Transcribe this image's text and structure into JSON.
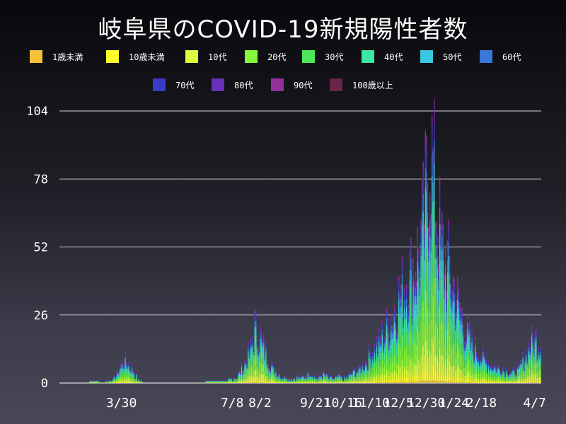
{
  "chart_data": {
    "type": "bar",
    "stacked": true,
    "title": "岐阜県のCOVID-19新規陽性者数",
    "xlabel": "",
    "ylabel": "",
    "ylim": [
      0,
      104
    ],
    "y_ticks": [
      0,
      26,
      52,
      78,
      104
    ],
    "x_tick_labels": [
      "3/30",
      "7/8",
      "8/2",
      "9/21",
      "10/16",
      "11/10",
      "12/5",
      "12/30",
      "1/24",
      "2/18",
      "4/7"
    ],
    "x_tick_days": [
      56,
      156,
      181,
      231,
      256,
      281,
      306,
      331,
      356,
      381,
      429
    ],
    "x_range_days": [
      0,
      435
    ],
    "grid": true,
    "legend_position": "top",
    "series": [
      {
        "name": "1歳未満",
        "color": "#f5c03a"
      },
      {
        "name": "10歳未満",
        "color": "#ffff2e"
      },
      {
        "name": "10代",
        "color": "#d8ff3a"
      },
      {
        "name": "20代",
        "color": "#86f73a"
      },
      {
        "name": "30代",
        "color": "#4de85a"
      },
      {
        "name": "40代",
        "color": "#3de8a6"
      },
      {
        "name": "50代",
        "color": "#3ac8e0"
      },
      {
        "name": "60代",
        "color": "#3a78d8"
      },
      {
        "name": "70代",
        "color": "#3a3ac8"
      },
      {
        "name": "80代",
        "color": "#6a30b8"
      },
      {
        "name": "90代",
        "color": "#90309a"
      },
      {
        "name": "100歳以上",
        "color": "#6a2448"
      }
    ],
    "total_profile_days": [
      [
        0,
        0
      ],
      [
        20,
        0
      ],
      [
        30,
        1
      ],
      [
        40,
        0
      ],
      [
        48,
        2
      ],
      [
        52,
        4
      ],
      [
        55,
        8
      ],
      [
        58,
        10
      ],
      [
        62,
        9
      ],
      [
        66,
        6
      ],
      [
        70,
        2
      ],
      [
        76,
        0
      ],
      [
        120,
        0
      ],
      [
        140,
        1
      ],
      [
        150,
        1
      ],
      [
        160,
        3
      ],
      [
        166,
        8
      ],
      [
        172,
        15
      ],
      [
        176,
        25
      ],
      [
        181,
        21
      ],
      [
        186,
        14
      ],
      [
        192,
        7
      ],
      [
        200,
        3
      ],
      [
        210,
        2
      ],
      [
        220,
        3
      ],
      [
        226,
        5
      ],
      [
        232,
        2
      ],
      [
        238,
        4
      ],
      [
        246,
        2
      ],
      [
        252,
        3
      ],
      [
        258,
        2
      ],
      [
        264,
        5
      ],
      [
        270,
        6
      ],
      [
        276,
        10
      ],
      [
        282,
        14
      ],
      [
        288,
        18
      ],
      [
        294,
        24
      ],
      [
        300,
        30
      ],
      [
        306,
        38
      ],
      [
        312,
        45
      ],
      [
        318,
        50
      ],
      [
        324,
        58
      ],
      [
        328,
        70
      ],
      [
        331,
        85
      ],
      [
        334,
        104
      ],
      [
        337,
        94
      ],
      [
        340,
        78
      ],
      [
        344,
        62
      ],
      [
        348,
        55
      ],
      [
        352,
        50
      ],
      [
        356,
        42
      ],
      [
        360,
        35
      ],
      [
        366,
        25
      ],
      [
        372,
        17
      ],
      [
        378,
        14
      ],
      [
        384,
        10
      ],
      [
        390,
        8
      ],
      [
        396,
        7
      ],
      [
        402,
        6
      ],
      [
        408,
        5
      ],
      [
        414,
        6
      ],
      [
        418,
        10
      ],
      [
        422,
        15
      ],
      [
        426,
        19
      ],
      [
        430,
        20
      ],
      [
        435,
        18
      ]
    ]
  }
}
